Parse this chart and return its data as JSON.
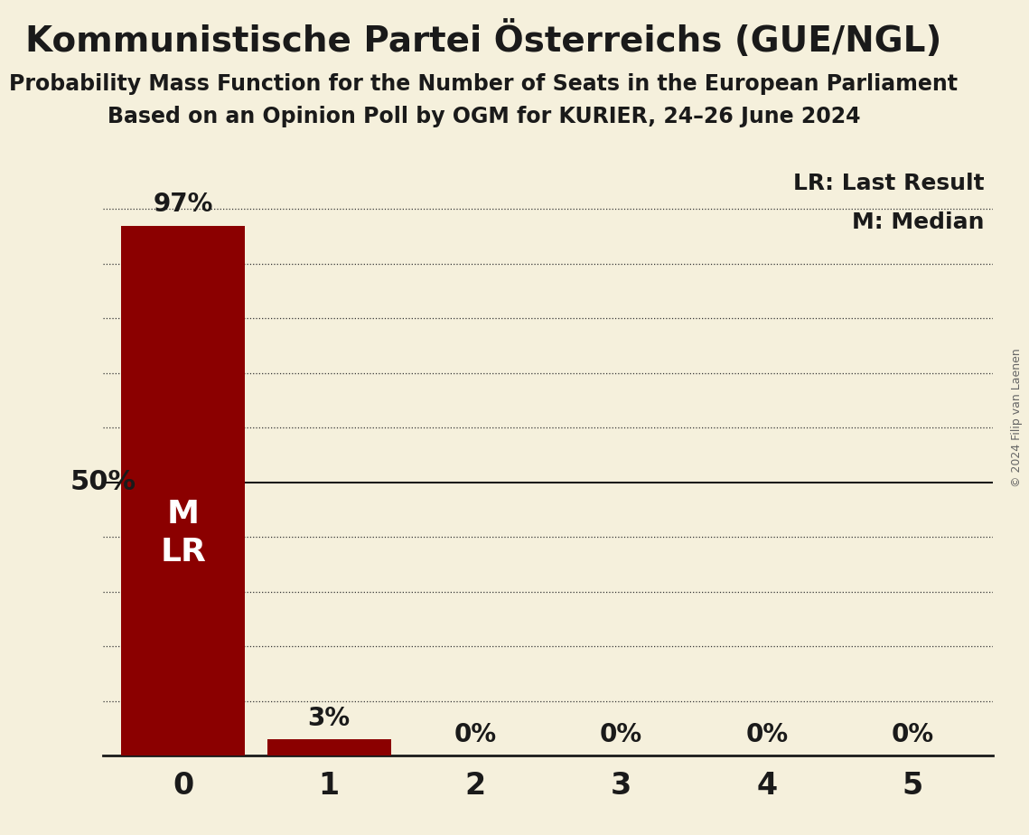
{
  "title": "Kommunistische Partei Österreichs (GUE/NGL)",
  "subtitle1": "Probability Mass Function for the Number of Seats in the European Parliament",
  "subtitle2": "Based on an Opinion Poll by OGM for KURIER, 24–26 June 2024",
  "copyright": "© 2024 Filip van Laenen",
  "categories": [
    0,
    1,
    2,
    3,
    4,
    5
  ],
  "values": [
    0.97,
    0.03,
    0.0,
    0.0,
    0.0,
    0.0
  ],
  "bar_color": "#8b0000",
  "background_color": "#f5f0dc",
  "label_50_pct": "50%",
  "yticks": [
    0.1,
    0.2,
    0.3,
    0.4,
    0.5,
    0.6,
    0.7,
    0.8,
    0.9,
    1.0
  ],
  "solid_line_y": 0.5,
  "median": 0,
  "last_result": 0,
  "legend_lr": "LR: Last Result",
  "legend_m": "M: Median",
  "bar_labels": [
    "97%",
    "3%",
    "0%",
    "0%",
    "0%",
    "0%"
  ],
  "bar_label_color_outside": "#1a1a1a",
  "ylim": [
    0,
    1.1
  ],
  "xlim": [
    -0.55,
    5.55
  ]
}
